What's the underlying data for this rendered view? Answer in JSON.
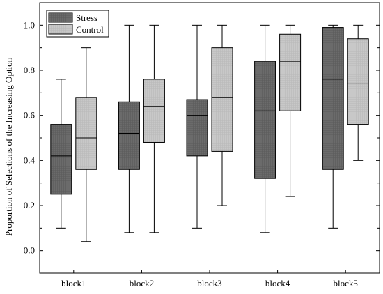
{
  "chart_data": {
    "type": "box",
    "title": "",
    "xlabel": "",
    "ylabel": "Proportion of Selections of the Increasing Option",
    "ylim": [
      -0.1,
      1.1
    ],
    "yticks": [
      "0.0",
      "0.2",
      "0.4",
      "0.6",
      "0.8",
      "1.0"
    ],
    "ytick_values": [
      0.0,
      0.2,
      0.4,
      0.6,
      0.8,
      1.0
    ],
    "categories": [
      "block1",
      "block2",
      "block3",
      "block4",
      "block5"
    ],
    "legend_position": "top-left",
    "series": [
      {
        "name": "Stress",
        "color": "#6b6b6b",
        "boxes": [
          {
            "min": 0.1,
            "q1": 0.25,
            "median": 0.42,
            "q3": 0.56,
            "max": 0.76
          },
          {
            "min": 0.08,
            "q1": 0.36,
            "median": 0.52,
            "q3": 0.66,
            "max": 1.0
          },
          {
            "min": 0.1,
            "q1": 0.42,
            "median": 0.6,
            "q3": 0.67,
            "max": 1.0
          },
          {
            "min": 0.08,
            "q1": 0.32,
            "median": 0.62,
            "q3": 0.84,
            "max": 1.0
          },
          {
            "min": 0.1,
            "q1": 0.36,
            "median": 0.76,
            "q3": 0.99,
            "max": 1.0
          }
        ]
      },
      {
        "name": "Control",
        "color": "#c8c8c8",
        "boxes": [
          {
            "min": 0.04,
            "q1": 0.36,
            "median": 0.5,
            "q3": 0.68,
            "max": 0.9
          },
          {
            "min": 0.08,
            "q1": 0.48,
            "median": 0.64,
            "q3": 0.76,
            "max": 1.0
          },
          {
            "min": 0.2,
            "q1": 0.44,
            "median": 0.68,
            "q3": 0.9,
            "max": 1.0
          },
          {
            "min": 0.24,
            "q1": 0.62,
            "median": 0.84,
            "q3": 0.96,
            "max": 1.0
          },
          {
            "min": 0.4,
            "q1": 0.56,
            "median": 0.74,
            "q3": 0.94,
            "max": 1.0
          }
        ]
      }
    ]
  }
}
